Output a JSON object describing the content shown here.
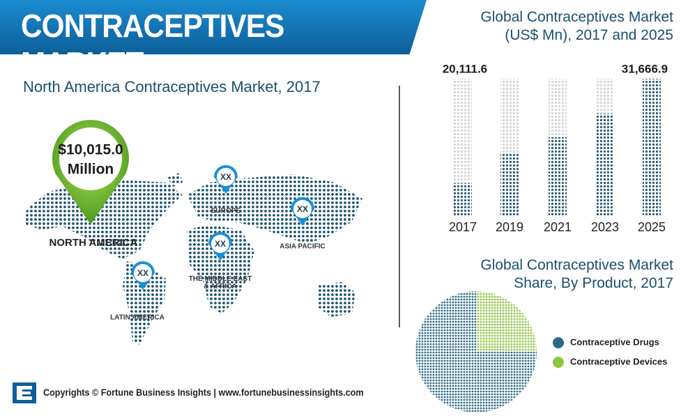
{
  "header": {
    "title": "CONTRACEPTIVES MARKET"
  },
  "map": {
    "title": "North America Contraceptives Market, 2017",
    "highlight": {
      "value": "$10,015.0",
      "unit": "Million"
    },
    "regions": [
      "NORTH AMERICA",
      "EUROPE",
      "ASIA PACIFIC",
      "THE MIDDLE EAST & AFRICA",
      "LATIN AMERICA"
    ],
    "pins": [
      "XX",
      "XX",
      "XX",
      "XX"
    ]
  },
  "chart_data": [
    {
      "type": "bar",
      "title": "Global Contraceptives Market (US$ Mn), 2017 and 2025",
      "categories": [
        "2017",
        "2019",
        "2021",
        "2023",
        "2025"
      ],
      "values": [
        20111.6,
        23400,
        25200,
        27800,
        31666.9
      ],
      "value_labels": [
        "20,111.6",
        null,
        null,
        null,
        "31,666.9"
      ],
      "color": "#2b5c73",
      "track_color": "#d4d4d4",
      "ylim": [
        16500,
        31666.9
      ]
    },
    {
      "type": "pie",
      "title": "Global Contraceptives Market Share, By Product, 2017",
      "categories": [
        "Contraceptive Drugs",
        "Contraceptive Devices"
      ],
      "values": [
        75,
        25
      ],
      "colors": [
        "#2b6a86",
        "#8dc63f"
      ]
    }
  ],
  "footer": {
    "text": "Copyrights © Fortune Business Insights | www.fortunebusinessinsights.com"
  }
}
